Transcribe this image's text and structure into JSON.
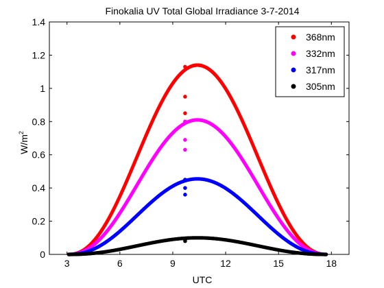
{
  "chart_data": {
    "type": "scatter",
    "title": "Finokalia UV Total Global Irradiance 3-7-2014",
    "xlabel": "UTC",
    "ylabel_main": "W/m",
    "ylabel_sup": "2",
    "xlim": [
      2,
      19
    ],
    "ylim": [
      0,
      1.4
    ],
    "xticks": [
      3,
      6,
      9,
      12,
      15,
      18
    ],
    "yticks": [
      0,
      0.2,
      0.4,
      0.6,
      0.8,
      1,
      1.2,
      1.4
    ],
    "ytick_labels": [
      "0",
      "0.2",
      "0.4",
      "0.6",
      "0.8",
      "1",
      "1.2",
      "1.4"
    ],
    "legend_position": "top-right",
    "curve_model": {
      "t_start": 3.1,
      "t_end": 17.7,
      "t_peak": 10.4,
      "step": 0.04
    },
    "series": [
      {
        "name": "368nm",
        "color": "#ff0000",
        "peak": 1.14,
        "outliers": [
          [
            9.7,
            1.13
          ],
          [
            9.7,
            0.95
          ],
          [
            9.7,
            0.85
          ]
        ]
      },
      {
        "name": "332nm",
        "color": "#ff00ff",
        "peak": 0.81,
        "outliers": [
          [
            9.7,
            0.8
          ],
          [
            9.7,
            0.69
          ],
          [
            9.7,
            0.63
          ]
        ]
      },
      {
        "name": "317nm",
        "color": "#0000ff",
        "peak": 0.455,
        "outliers": [
          [
            9.7,
            0.45
          ],
          [
            9.7,
            0.4
          ],
          [
            9.7,
            0.36
          ]
        ]
      },
      {
        "name": "305nm",
        "color": "#000000",
        "peak": 0.1,
        "outliers": [
          [
            9.7,
            0.09
          ],
          [
            9.7,
            0.08
          ]
        ]
      }
    ]
  }
}
